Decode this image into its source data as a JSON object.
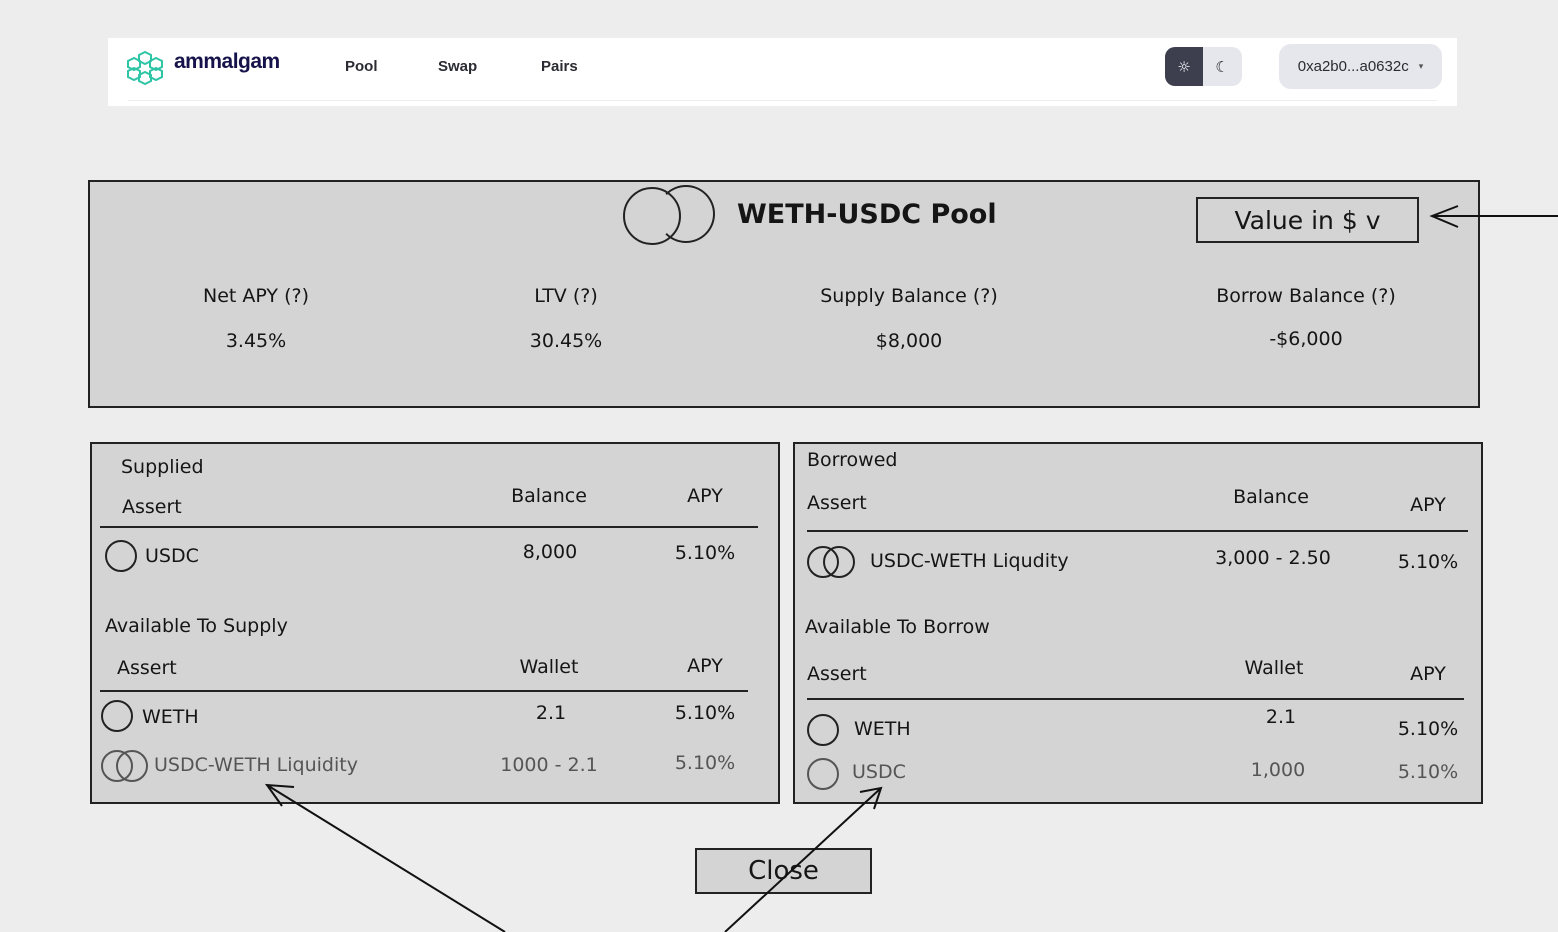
{
  "header": {
    "brand": "ammalgam",
    "nav": [
      "Pool",
      "Swap",
      "Pairs"
    ],
    "theme": {
      "light_icon": "sun-icon",
      "dark_icon": "moon-icon",
      "active": "light"
    },
    "wallet": "0xa2b0...a0632c",
    "wallet_caret": "▾"
  },
  "pool": {
    "title": "WETH-USDC Pool",
    "value_select": "Value in $ v",
    "stats": [
      {
        "label": "Net APY (?)",
        "value": "3.45%"
      },
      {
        "label": "LTV (?)",
        "value": "30.45%"
      },
      {
        "label": "Supply Balance (?)",
        "value": "$8,000"
      },
      {
        "label": "Borrow Balance (?)",
        "value": "-$6,000"
      }
    ]
  },
  "supplied": {
    "title": "Supplied",
    "headers": [
      "Assert",
      "Balance",
      "APY"
    ],
    "rows": [
      {
        "asset": "USDC",
        "balance": "8,000",
        "apy": "5.10%"
      }
    ],
    "available_title": "Available To Supply",
    "available_headers": [
      "Assert",
      "Wallet",
      "APY"
    ],
    "available": [
      {
        "asset": "WETH",
        "wallet": "2.1",
        "apy": "5.10%"
      },
      {
        "asset": "USDC-WETH Liquidity",
        "wallet": "1000 - 2.1",
        "apy": "5.10%"
      }
    ]
  },
  "borrowed": {
    "title": "Borrowed",
    "headers": [
      "Assert",
      "Balance",
      "APY"
    ],
    "rows": [
      {
        "asset": "USDC-WETH Liqudity",
        "balance": "3,000 - 2.50",
        "apy": "5.10%"
      }
    ],
    "available_title": "Available To Borrow",
    "available_headers": [
      "Assert",
      "Wallet",
      "APY"
    ],
    "available": [
      {
        "asset": "WETH",
        "wallet": "2.1",
        "apy": "5.10%"
      },
      {
        "asset": "USDC",
        "wallet": "1,000",
        "apy": "5.10%"
      }
    ]
  },
  "close_label": "Close",
  "colors": {
    "logo": "#2ec4a6",
    "brand": "#15134a",
    "panel": "#d4d4d4",
    "background": "#ededed"
  }
}
